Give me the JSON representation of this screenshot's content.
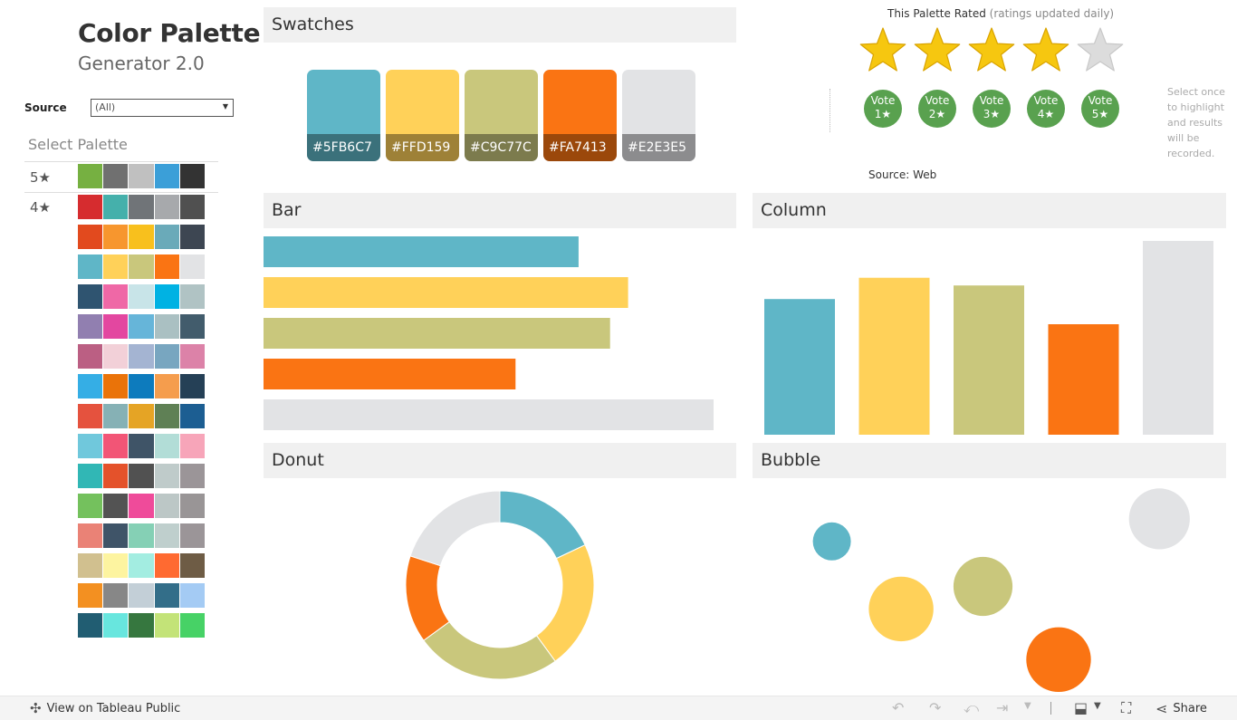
{
  "header": {
    "title": "Color Palette",
    "subtitle": "Generator 2.0"
  },
  "source": {
    "label": "Source",
    "value": "(All)"
  },
  "palette_list": {
    "heading": "Select Palette",
    "groups": [
      {
        "stars": "5★",
        "rows": [
          [
            "#76b041",
            "#707070",
            "#c0c0c0",
            "#3b9fd8",
            "#333333"
          ]
        ]
      },
      {
        "stars": "4★",
        "rows": [
          [
            "#d62c2f",
            "#45b0ab",
            "#707478",
            "#a7a9ac",
            "#505050"
          ],
          [
            "#e24a1e",
            "#f7962e",
            "#f8c01d",
            "#6aaab9",
            "#3d4652"
          ],
          [
            "#5fb6c7",
            "#ffd159",
            "#c9c77c",
            "#fa7413",
            "#e2e3e5"
          ],
          [
            "#2f5470",
            "#ef68a6",
            "#c8e4e8",
            "#00b2e3",
            "#b0c3c4"
          ],
          [
            "#917fb0",
            "#e347a0",
            "#66b5d9",
            "#aac0c2",
            "#425c6c"
          ],
          [
            "#bb5f83",
            "#f2d0d8",
            "#a4b4d2",
            "#78a6c0",
            "#dc82a8"
          ],
          [
            "#35aee5",
            "#ea7309",
            "#0d7bbd",
            "#f59d4d",
            "#254056"
          ],
          [
            "#e5523e",
            "#86b1b5",
            "#e5a425",
            "#5f8055",
            "#1c5e92"
          ],
          [
            "#70c8dc",
            "#f25576",
            "#3f5467",
            "#b2ddd7",
            "#f7a5b9"
          ],
          [
            "#31b7b5",
            "#e4522b",
            "#515151",
            "#bfcbca",
            "#9b9598"
          ],
          [
            "#74c15d",
            "#535353",
            "#ef4b9a",
            "#bcc7c6",
            "#999596"
          ],
          [
            "#ea8276",
            "#3f5468",
            "#85d0b5",
            "#bfcfcd",
            "#9b9598"
          ],
          [
            "#d1c08f",
            "#fdf4a0",
            "#a3ede1",
            "#ff6a31",
            "#6e5c45"
          ],
          [
            "#f39021",
            "#878787",
            "#c3cfd7",
            "#336e89",
            "#a4cbf4"
          ],
          [
            "#215d72",
            "#68e6de",
            "#36773f",
            "#c3e378",
            "#47d266"
          ]
        ]
      }
    ]
  },
  "swatches": {
    "heading": "Swatches",
    "items": [
      {
        "hex": "#5FB6C7",
        "color": "#5fb6c7"
      },
      {
        "hex": "#FFD159",
        "color": "#ffd159"
      },
      {
        "hex": "#C9C77C",
        "color": "#c9c77c"
      },
      {
        "hex": "#FA7413",
        "color": "#fa7413"
      },
      {
        "hex": "#E2E3E5",
        "color": "#e2e3e5"
      }
    ]
  },
  "rating": {
    "title": "This Palette Rated",
    "subtitle": "(ratings updated daily)",
    "stars_value": 4,
    "stars_max": 5,
    "votes": [
      {
        "top": "Vote",
        "bottom": "1★"
      },
      {
        "top": "Vote",
        "bottom": "2★"
      },
      {
        "top": "Vote",
        "bottom": "3★"
      },
      {
        "top": "Vote",
        "bottom": "4★"
      },
      {
        "top": "Vote",
        "bottom": "5★"
      }
    ],
    "note": "Select once to highlight and results will be recorded.",
    "source_text": "Source: Web"
  },
  "charts": {
    "bar": "Bar",
    "column": "Column",
    "donut": "Donut",
    "bubble": "Bubble"
  },
  "chart_data": [
    {
      "type": "bar",
      "title": "Bar",
      "colors": [
        "#5fb6c7",
        "#ffd159",
        "#c9c77c",
        "#fa7413",
        "#e2e3e5"
      ],
      "values": [
        70,
        81,
        77,
        56,
        100
      ]
    },
    {
      "type": "bar",
      "title": "Column",
      "colors": [
        "#5fb6c7",
        "#ffd159",
        "#c9c77c",
        "#fa7413",
        "#e2e3e5"
      ],
      "values": [
        70,
        81,
        77,
        57,
        100
      ]
    },
    {
      "type": "pie",
      "title": "Donut",
      "colors": [
        "#5fb6c7",
        "#ffd159",
        "#c9c77c",
        "#fa7413",
        "#e2e3e5"
      ],
      "values": [
        18,
        22,
        25,
        15,
        20
      ]
    },
    {
      "type": "scatter",
      "title": "Bubble",
      "colors": [
        "#5fb6c7",
        "#ffd159",
        "#c9c77c",
        "#fa7413",
        "#e2e3e5"
      ],
      "points": [
        {
          "x": 1,
          "y": 2.4,
          "size": 1.0
        },
        {
          "x": 2.1,
          "y": 1.2,
          "size": 1.7
        },
        {
          "x": 3.4,
          "y": 1.6,
          "size": 1.55
        },
        {
          "x": 4.6,
          "y": 0.3,
          "size": 1.7
        },
        {
          "x": 6.2,
          "y": 2.8,
          "size": 1.6
        }
      ]
    }
  ],
  "toolbar": {
    "view_label": "View on Tableau Public",
    "share_label": "Share"
  }
}
